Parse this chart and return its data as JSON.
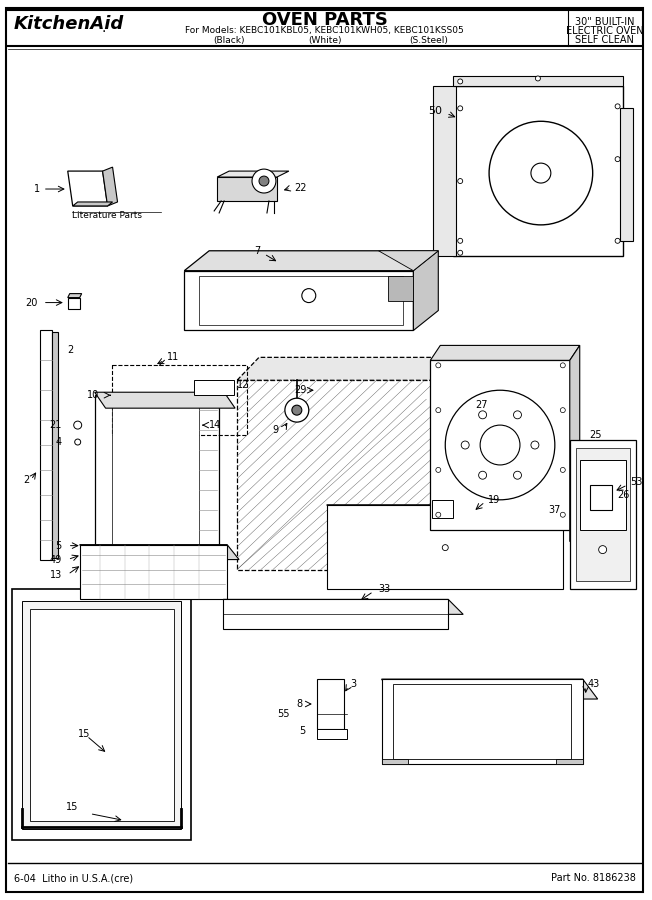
{
  "title_brand": "KitchenAid.",
  "title_main": "OVEN PARTS",
  "title_sub1": "For Models: KEBC101KBL05, KEBC101KWH05, KEBC101KSS05",
  "title_sub2_black": "(Black)",
  "title_sub2_white": "(White)",
  "title_sub2_ssteel": "(S.Steel)",
  "title_right": "30\" BUILT-IN\nELECTRIC OVEN\nSELF CLEAN",
  "footer_left": "6-04  Litho in U.S.A.(cre)",
  "footer_right": "Part No. 8186238",
  "bg_color": "#ffffff",
  "line_color": "#000000"
}
